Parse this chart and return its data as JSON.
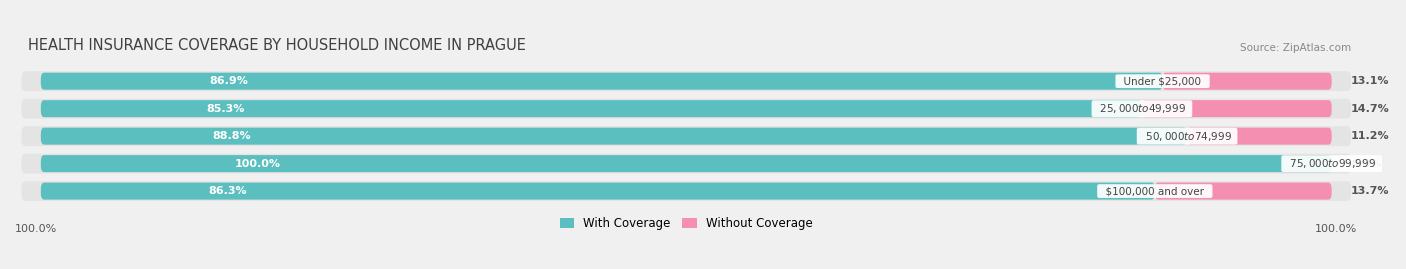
{
  "title": "HEALTH INSURANCE COVERAGE BY HOUSEHOLD INCOME IN PRAGUE",
  "source": "Source: ZipAtlas.com",
  "categories": [
    "Under $25,000",
    "$25,000 to $49,999",
    "$50,000 to $74,999",
    "$75,000 to $99,999",
    "$100,000 and over"
  ],
  "with_coverage": [
    86.9,
    85.3,
    88.8,
    100.0,
    86.3
  ],
  "without_coverage": [
    13.1,
    14.7,
    11.2,
    0.0,
    13.7
  ],
  "color_coverage": "#5BBFBF",
  "color_no_coverage": "#F48FB1",
  "bg_color": "#f0f0f0",
  "row_bg_color": "#e4e4e4",
  "title_color": "#404040",
  "source_color": "#888888",
  "axis_label_color": "#555555",
  "label_inside_color": "#ffffff",
  "label_outside_color": "#555555",
  "cat_label_color": "#444444",
  "axis_label_left": "100.0%",
  "axis_label_right": "100.0%",
  "legend_coverage": "With Coverage",
  "legend_no_coverage": "Without Coverage",
  "bar_height": 0.62
}
